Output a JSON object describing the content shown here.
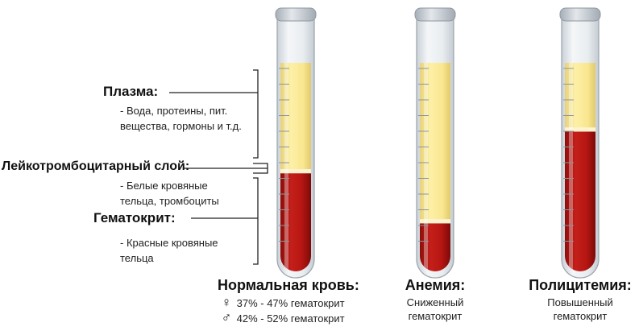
{
  "labels": {
    "plasma": {
      "title": "Плазма:",
      "desc_line1": "- Вода, протеины, пит.",
      "desc_line2": "вещества, гормоны и т.д."
    },
    "buffy": {
      "title": "Лейкотромбоцитарный слой:",
      "desc_line1": "- Белые кровяные",
      "desc_line2": "тельца, тромбоциты"
    },
    "hematocrit": {
      "title": "Гематокрит:",
      "desc_line1": "- Красные кровяные",
      "desc_line2": "тельца"
    }
  },
  "tubes": [
    {
      "caption": "Нормальная кровь:",
      "female_icon": "female-symbol-icon",
      "male_icon": "male-symbol-icon",
      "female_value": "37% - 47%",
      "female_label": "гематокрит",
      "male_value": "42% - 52%",
      "male_label": "гематокрит",
      "red_fraction": 0.47,
      "buffy_fraction": 0.02
    },
    {
      "caption": "Анемия:",
      "sub_line1": "Сниженный",
      "sub_line2": "гематокрит",
      "red_fraction": 0.23,
      "buffy_fraction": 0.02
    },
    {
      "caption": "Полицитемия:",
      "sub_line1": "Повышенный",
      "sub_line2": "гематокрит",
      "red_fraction": 0.67,
      "buffy_fraction": 0.02
    }
  ],
  "colors": {
    "plasma": "#fbeb9c",
    "buffy": "#fdf3cf",
    "blood": "#bf1a16",
    "blood_dark": "#8e0d0b",
    "glass": "#dfe5ea",
    "cap": "#b9c0c7"
  }
}
